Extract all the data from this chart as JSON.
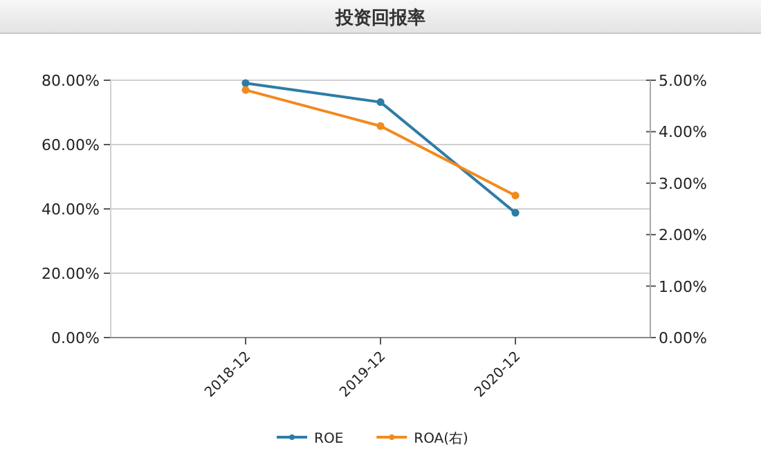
{
  "chart_data": {
    "type": "line",
    "title": "投资回报率",
    "categories": [
      "2018-12",
      "2019-12",
      "2020-12"
    ],
    "series": [
      {
        "name": "ROE",
        "color": "#2e7ca6",
        "values": [
          79.1,
          73.2,
          38.8
        ]
      },
      {
        "name": "ROA(右)",
        "color": "#f28a1e",
        "values": [
          4.81,
          4.11,
          2.76
        ],
        "axis": "y2"
      }
    ],
    "ylim": [
      0,
      80
    ],
    "yticks": [
      {
        "value": 0,
        "label": "0.00%"
      },
      {
        "value": 20,
        "label": "20.00%"
      },
      {
        "value": 40,
        "label": "40.00%"
      },
      {
        "value": 60,
        "label": "60.00%"
      },
      {
        "value": 80,
        "label": "80.00%"
      }
    ],
    "y2lim": [
      0,
      5
    ],
    "y2ticks": [
      {
        "value": 0,
        "label": "0.00%"
      },
      {
        "value": 1,
        "label": "1.00%"
      },
      {
        "value": 2,
        "label": "2.00%"
      },
      {
        "value": 3,
        "label": "3.00%"
      },
      {
        "value": 4,
        "label": "4.00%"
      },
      {
        "value": 5,
        "label": "5.00%"
      }
    ],
    "grid": "y",
    "legend": "bottom",
    "marker": "circle",
    "line_style": "solid"
  }
}
